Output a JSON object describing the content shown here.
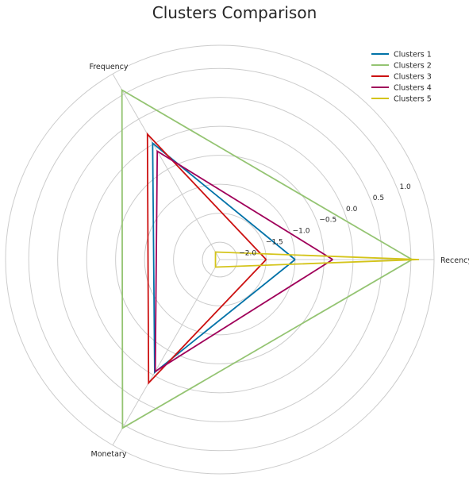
{
  "chart_data": {
    "type": "radar",
    "title": "Clusters Comparison",
    "axes": [
      "Recency",
      "Frequency",
      "Monetary"
    ],
    "rlim": [
      -2.3,
      1.4
    ],
    "ticks": [
      -2.0,
      -1.5,
      -1.0,
      -0.5,
      0.0,
      0.5,
      1.0
    ],
    "tick_labels": [
      "−2.0",
      "−1.5",
      "−1.0",
      "−0.5",
      "0.0",
      "0.5",
      "1.0"
    ],
    "grid": true,
    "legend_position": "top-right",
    "series": [
      {
        "name": "Clusters 1",
        "color": "#0072a8",
        "values": [
          -1.0,
          0.02,
          -0.05
        ]
      },
      {
        "name": "Clusters 2",
        "color": "#94c472",
        "values": [
          1.02,
          1.08,
          1.06
        ]
      },
      {
        "name": "Clusters 3",
        "color": "#cc1111",
        "values": [
          -1.5,
          0.2,
          0.16
        ]
      },
      {
        "name": "Clusters 4",
        "color": "#a0005a",
        "values": [
          -0.35,
          -0.14,
          -0.07
        ]
      },
      {
        "name": "Clusters 5",
        "color": "#d4c41a",
        "values": [
          1.14,
          -2.15,
          -2.15
        ]
      }
    ]
  }
}
